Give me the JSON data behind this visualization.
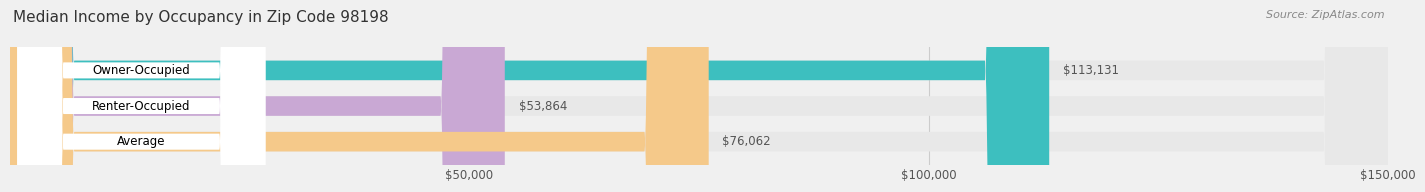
{
  "title": "Median Income by Occupancy in Zip Code 98198",
  "source": "Source: ZipAtlas.com",
  "categories": [
    "Owner-Occupied",
    "Renter-Occupied",
    "Average"
  ],
  "values": [
    113131,
    53864,
    76062
  ],
  "labels": [
    "$113,131",
    "$53,864",
    "$76,062"
  ],
  "bar_colors": [
    "#3dbfbf",
    "#c9a8d4",
    "#f5c98a"
  ],
  "xlim": [
    0,
    150000
  ],
  "xticks": [
    0,
    50000,
    100000,
    150000
  ],
  "xticklabels": [
    "",
    "$50,000",
    "$100,000",
    "$150,000"
  ],
  "bar_height": 0.55,
  "background_color": "#f0f0f0",
  "bar_bg_color": "#e8e8e8",
  "title_fontsize": 11,
  "source_fontsize": 8,
  "label_fontsize": 8.5,
  "tick_fontsize": 8.5,
  "category_fontsize": 8.5
}
